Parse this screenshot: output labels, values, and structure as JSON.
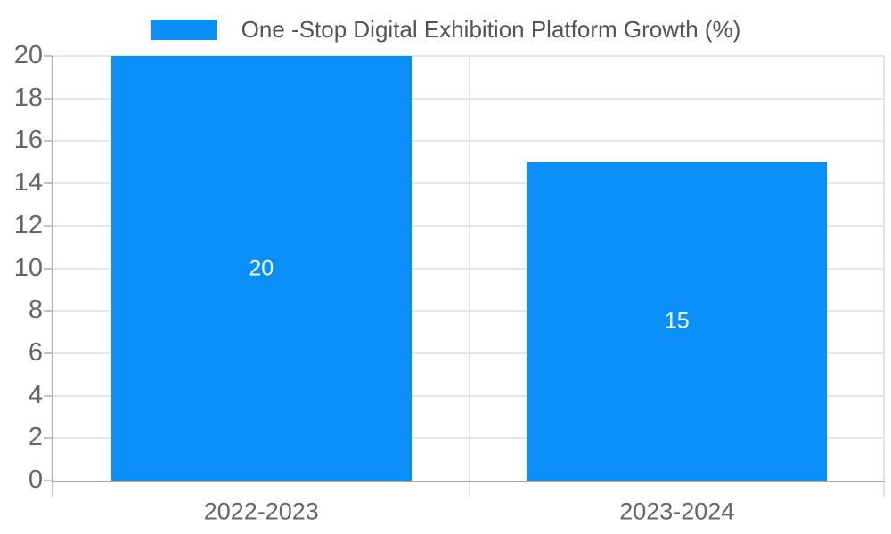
{
  "chart_data": {
    "type": "bar",
    "title": "One -Stop Digital Exhibition Platform Growth (%)",
    "categories": [
      "2022-2023",
      "2023-2024"
    ],
    "series": [
      {
        "name": "One -Stop Digital Exhibition Platform Growth (%)",
        "values": [
          20,
          15
        ]
      }
    ],
    "data_labels": [
      "20",
      "15"
    ],
    "xlabel": "",
    "ylabel": "",
    "ylim": [
      0,
      20
    ],
    "ytick_step": 2,
    "yticks": [
      0,
      2,
      4,
      6,
      8,
      10,
      12,
      14,
      16,
      18,
      20
    ],
    "grid": true,
    "legend_position": "top-center",
    "colors": {
      "bar": "#0a8ff9",
      "bar_label": "#ffffff",
      "axis": "#ababab",
      "gridline": "#e6e6e6",
      "separator": "#e4e4e4",
      "tick": "#c4c4c4",
      "tick_label": "#666666",
      "legend_text": "#545454"
    }
  }
}
